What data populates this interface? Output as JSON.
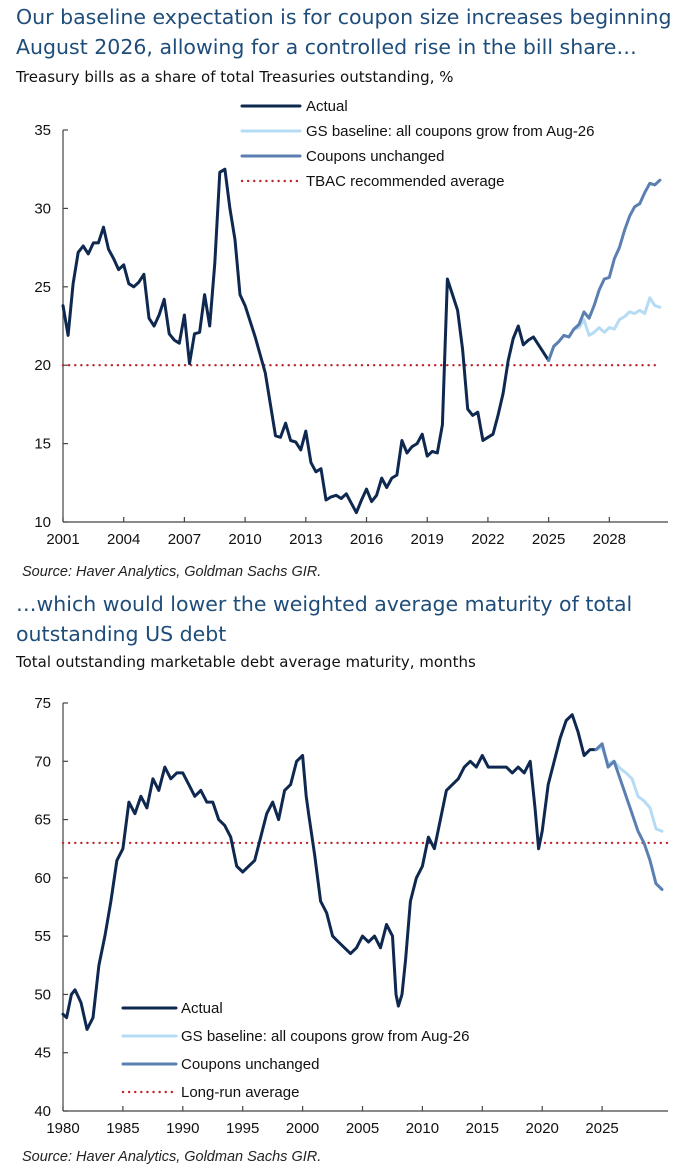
{
  "chart_data": [
    {
      "type": "line",
      "heading": [
        "Our baseline expectation is for coupon size increases beginning",
        "August 2026, allowing for a controlled rise in the bill share…"
      ],
      "title": "Treasury bills as a share of total Treasuries outstanding, %",
      "source": "Source: Haver Analytics, Goldman Sachs GIR.",
      "xlabel": "",
      "ylabel": "",
      "xlim": [
        2001,
        2030.9
      ],
      "ylim": [
        10,
        35
      ],
      "x_ticks": [
        "2001",
        "2004",
        "2007",
        "2010",
        "2013",
        "2016",
        "2019",
        "2022",
        "2025",
        "2028"
      ],
      "y_ticks": [
        "10",
        "15",
        "20",
        "25",
        "30",
        "35"
      ],
      "grid": false,
      "legend_position": "top",
      "series": [
        {
          "name": "Actual",
          "color": "#0e2850",
          "style": "solid",
          "x": [
            2001.0,
            2001.25,
            2001.5,
            2001.75,
            2002.0,
            2002.25,
            2002.5,
            2002.75,
            2003.0,
            2003.25,
            2003.5,
            2003.75,
            2004.0,
            2004.25,
            2004.5,
            2004.75,
            2005.0,
            2005.25,
            2005.5,
            2005.75,
            2006.0,
            2006.25,
            2006.5,
            2006.75,
            2007.0,
            2007.25,
            2007.5,
            2007.75,
            2008.0,
            2008.25,
            2008.5,
            2008.75,
            2009.0,
            2009.25,
            2009.5,
            2009.75,
            2010.0,
            2010.5,
            2011.0,
            2011.25,
            2011.5,
            2011.75,
            2012.0,
            2012.25,
            2012.5,
            2012.75,
            2013.0,
            2013.25,
            2013.5,
            2013.75,
            2014.0,
            2014.25,
            2014.5,
            2014.75,
            2015.0,
            2015.25,
            2015.5,
            2015.75,
            2016.0,
            2016.25,
            2016.5,
            2016.75,
            2017.0,
            2017.25,
            2017.5,
            2017.75,
            2018.0,
            2018.25,
            2018.5,
            2018.75,
            2019.0,
            2019.25,
            2019.5,
            2019.75,
            2020.0,
            2020.25,
            2020.5,
            2020.75,
            2021.0,
            2021.25,
            2021.5,
            2021.75,
            2022.0,
            2022.25,
            2022.5,
            2022.75,
            2023.0,
            2023.25,
            2023.5,
            2023.75,
            2024.0,
            2024.25,
            2024.5,
            2024.75,
            2025.0
          ],
          "values": [
            23.8,
            21.9,
            25.2,
            27.2,
            27.6,
            27.1,
            27.8,
            27.8,
            28.8,
            27.4,
            26.8,
            26.1,
            26.4,
            25.2,
            25.0,
            25.3,
            25.8,
            23.0,
            22.5,
            23.2,
            24.2,
            22.0,
            21.6,
            21.4,
            23.2,
            20.1,
            22.0,
            22.1,
            24.5,
            22.5,
            26.5,
            32.3,
            32.5,
            30.0,
            28.0,
            24.5,
            23.8,
            21.8,
            19.5,
            17.5,
            15.5,
            15.4,
            16.3,
            15.2,
            15.1,
            14.6,
            15.8,
            13.8,
            13.2,
            13.4,
            11.4,
            11.6,
            11.7,
            11.5,
            11.8,
            11.2,
            10.6,
            11.4,
            12.1,
            11.3,
            11.7,
            12.8,
            12.2,
            12.8,
            13.0,
            15.2,
            14.4,
            14.8,
            15.0,
            15.6,
            14.2,
            14.5,
            14.4,
            16.2,
            25.5,
            24.5,
            23.5,
            21.0,
            17.2,
            16.8,
            17.0,
            15.2,
            15.4,
            15.6,
            16.8,
            18.2,
            20.3,
            21.7,
            22.5,
            21.3,
            21.6,
            21.8,
            21.3,
            20.8,
            20.3
          ]
        },
        {
          "name": "GS baseline: all coupons grow from Aug-26",
          "color": "#b5dcf4",
          "style": "solid",
          "x": [
            2025.0,
            2025.25,
            2025.5,
            2025.75,
            2026.0,
            2026.25,
            2026.5,
            2026.75,
            2027.0,
            2027.25,
            2027.5,
            2027.75,
            2028.0,
            2028.25,
            2028.5,
            2028.75,
            2029.0,
            2029.25,
            2029.5,
            2029.75,
            2030.0,
            2030.25,
            2030.5
          ],
          "values": [
            20.3,
            21.2,
            21.5,
            21.9,
            21.8,
            22.3,
            22.4,
            22.9,
            21.9,
            22.1,
            22.4,
            22.1,
            22.4,
            22.3,
            22.9,
            23.1,
            23.4,
            23.3,
            23.5,
            23.3,
            24.3,
            23.8,
            23.7
          ]
        },
        {
          "name": "Coupons unchanged",
          "color": "#5b7fb0",
          "style": "solid",
          "x": [
            2025.0,
            2025.25,
            2025.5,
            2025.75,
            2026.0,
            2026.25,
            2026.5,
            2026.75,
            2027.0,
            2027.25,
            2027.5,
            2027.75,
            2028.0,
            2028.25,
            2028.5,
            2028.75,
            2029.0,
            2029.25,
            2029.5,
            2029.75,
            2030.0,
            2030.25,
            2030.5
          ],
          "values": [
            20.3,
            21.2,
            21.5,
            21.9,
            21.8,
            22.3,
            22.6,
            23.4,
            23.0,
            23.8,
            24.8,
            25.5,
            25.6,
            26.8,
            27.5,
            28.6,
            29.5,
            30.1,
            30.3,
            31.0,
            31.6,
            31.5,
            31.8
          ]
        },
        {
          "name": "TBAC recommended average",
          "color": "#c0282e",
          "style": "dotted",
          "x": [
            2001.0,
            2030.5
          ],
          "values": [
            20,
            20
          ]
        }
      ]
    },
    {
      "type": "line",
      "heading": [
        "…which would lower the weighted average maturity of total",
        "outstanding US debt"
      ],
      "title": "Total outstanding marketable debt average maturity, months",
      "source": "Source: Haver Analytics, Goldman Sachs GIR.",
      "xlabel": "",
      "ylabel": "",
      "xlim": [
        1980,
        2030.5
      ],
      "ylim": [
        40,
        75
      ],
      "x_ticks": [
        "1980",
        "1985",
        "1990",
        "1995",
        "2000",
        "2005",
        "2010",
        "2015",
        "2020",
        "2025"
      ],
      "y_ticks": [
        "40",
        "45",
        "50",
        "55",
        "60",
        "65",
        "70",
        "75"
      ],
      "grid": false,
      "legend_position": "bottom-left",
      "series": [
        {
          "name": "Actual",
          "color": "#0e2850",
          "style": "solid",
          "x": [
            1980.0,
            1980.3,
            1980.7,
            1981.0,
            1981.5,
            1982.0,
            1982.5,
            1983.0,
            1983.5,
            1984.0,
            1984.5,
            1985.0,
            1985.5,
            1986.0,
            1986.5,
            1987.0,
            1987.5,
            1988.0,
            1988.5,
            1989.0,
            1989.5,
            1990.0,
            1990.5,
            1991.0,
            1991.5,
            1992.0,
            1992.5,
            1993.0,
            1993.5,
            1994.0,
            1994.5,
            1995.0,
            1995.5,
            1996.0,
            1996.5,
            1997.0,
            1997.5,
            1998.0,
            1998.5,
            1999.0,
            1999.5,
            2000.0,
            2000.3,
            2000.5,
            2001.0,
            2001.5,
            2002.0,
            2002.5,
            2003.0,
            2003.5,
            2004.0,
            2004.5,
            2005.0,
            2005.5,
            2006.0,
            2006.5,
            2007.0,
            2007.5,
            2007.8,
            2008.0,
            2008.3,
            2008.6,
            2009.0,
            2009.5,
            2010.0,
            2010.5,
            2011.0,
            2011.5,
            2012.0,
            2012.5,
            2013.0,
            2013.5,
            2014.0,
            2014.5,
            2015.0,
            2015.5,
            2016.0,
            2016.5,
            2017.0,
            2017.5,
            2018.0,
            2018.5,
            2019.0,
            2019.4,
            2019.7,
            2020.0,
            2020.5,
            2021.0,
            2021.5,
            2022.0,
            2022.5,
            2023.0,
            2023.5,
            2024.0,
            2024.5
          ],
          "values": [
            48.3,
            48.0,
            50.0,
            50.4,
            49.3,
            47.0,
            48.0,
            52.5,
            55.0,
            58.0,
            61.5,
            62.5,
            66.5,
            65.5,
            67.0,
            66.0,
            68.5,
            67.5,
            69.5,
            68.5,
            69.0,
            69.0,
            68.0,
            67.0,
            67.5,
            66.5,
            66.5,
            65.0,
            64.5,
            63.5,
            61.0,
            60.5,
            61.0,
            61.5,
            63.5,
            65.5,
            66.5,
            65.0,
            67.5,
            68.0,
            70.0,
            70.5,
            67.0,
            65.5,
            62.0,
            58.0,
            57.0,
            55.0,
            54.5,
            54.0,
            53.5,
            54.0,
            55.0,
            54.5,
            55.0,
            54.0,
            56.0,
            55.0,
            50.0,
            49.0,
            50.0,
            53.0,
            58.0,
            60.0,
            61.0,
            63.5,
            62.5,
            65.0,
            67.5,
            68.0,
            68.5,
            69.5,
            70.0,
            69.5,
            70.5,
            69.5,
            69.5,
            69.5,
            69.5,
            69.0,
            69.5,
            69.0,
            70.0,
            66.0,
            62.5,
            64.0,
            68.0,
            70.0,
            72.0,
            73.5,
            74.0,
            72.5,
            70.5,
            71.0,
            71.0
          ]
        },
        {
          "name": "GS baseline: all coupons grow from Aug-26",
          "color": "#b5dcf4",
          "style": "solid",
          "x": [
            2024.5,
            2025.0,
            2025.5,
            2026.0,
            2026.5,
            2027.0,
            2027.5,
            2028.0,
            2028.5,
            2029.0,
            2029.5,
            2030.0
          ],
          "values": [
            71.0,
            71.2,
            69.8,
            70.0,
            69.4,
            69.0,
            68.5,
            67.0,
            66.6,
            66.0,
            64.2,
            64.0
          ]
        },
        {
          "name": "Coupons unchanged",
          "color": "#5b7fb0",
          "style": "solid",
          "x": [
            2024.5,
            2025.0,
            2025.5,
            2026.0,
            2026.5,
            2027.0,
            2027.5,
            2028.0,
            2028.5,
            2029.0,
            2029.5,
            2030.0
          ],
          "values": [
            71.0,
            71.5,
            69.5,
            70.0,
            68.5,
            67.0,
            65.5,
            64.0,
            63.0,
            61.5,
            59.5,
            59.0
          ]
        },
        {
          "name": "Long-run average",
          "color": "#c0282e",
          "style": "dotted",
          "x": [
            1980.0,
            2030.5
          ],
          "values": [
            63,
            63
          ]
        }
      ]
    }
  ]
}
